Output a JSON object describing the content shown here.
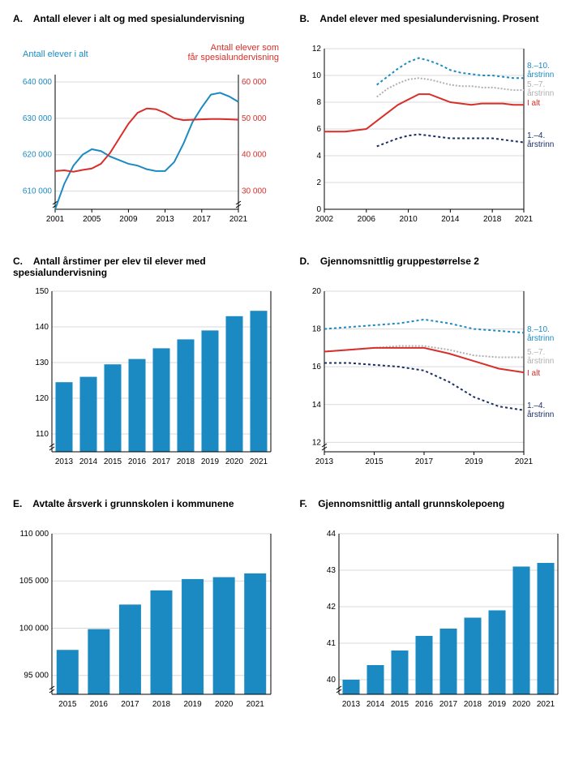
{
  "colors": {
    "blue": "#1c8ac2",
    "red": "#d72f2a",
    "navy": "#1a2f66",
    "grey": "#b0b0b0",
    "bar": "#1c8ac2",
    "axis": "#000000",
    "gridline": "#d9d9d9",
    "text": "#000000"
  },
  "panelA": {
    "letter": "A.",
    "title": "Antall elever i alt og med spesialundervisning",
    "left_label": "Antall elever i alt",
    "right_label": "Antall elever som får spesialundervisning",
    "x_ticks": [
      2001,
      2005,
      2009,
      2013,
      2017,
      2021
    ],
    "y_left_ticks": [
      610000,
      620000,
      630000,
      640000
    ],
    "y_right_ticks": [
      30000,
      40000,
      50000,
      60000
    ],
    "left_ylim": [
      605000,
      642000
    ],
    "right_ylim": [
      25000,
      62000
    ],
    "series_blue": {
      "color": "#1c8ac2",
      "x": [
        2001,
        2002,
        2003,
        2004,
        2005,
        2006,
        2007,
        2008,
        2009,
        2010,
        2011,
        2012,
        2013,
        2014,
        2015,
        2016,
        2017,
        2018,
        2019,
        2020,
        2021
      ],
      "y": [
        605000,
        612000,
        617000,
        620000,
        621500,
        621000,
        619500,
        618500,
        617500,
        617000,
        616000,
        615500,
        615500,
        618000,
        623000,
        629000,
        633000,
        636500,
        637000,
        636000,
        634500
      ]
    },
    "series_red": {
      "color": "#d72f2a",
      "x": [
        2001,
        2002,
        2003,
        2004,
        2005,
        2006,
        2007,
        2008,
        2009,
        2010,
        2011,
        2012,
        2013,
        2014,
        2015,
        2016,
        2017,
        2018,
        2019,
        2020,
        2021
      ],
      "y": [
        35500,
        35700,
        35300,
        35800,
        36200,
        37500,
        40500,
        44500,
        48500,
        51500,
        52700,
        52500,
        51500,
        50000,
        49500,
        49600,
        49700,
        49800,
        49800,
        49700,
        49600
      ]
    }
  },
  "panelB": {
    "letter": "B.",
    "title": "Andel elever med spesialundervisning. Prosent",
    "x_ticks": [
      2002,
      2006,
      2010,
      2014,
      2018,
      2021
    ],
    "y_ticks": [
      0,
      2,
      4,
      6,
      8,
      10,
      12
    ],
    "ylim": [
      0,
      12
    ],
    "labels": {
      "810": "8.–10. årstrinn",
      "57": "5.–7. årstrinn",
      "ialt": "I alt",
      "14": "1.–4. årstrinn"
    },
    "series": [
      {
        "name": "8-10",
        "color": "#1c8ac2",
        "dash": "3,3",
        "x": [
          2007,
          2008,
          2009,
          2010,
          2011,
          2012,
          2013,
          2014,
          2015,
          2016,
          2017,
          2018,
          2019,
          2020,
          2021
        ],
        "y": [
          9.3,
          9.9,
          10.5,
          11.0,
          11.3,
          11.1,
          10.8,
          10.4,
          10.2,
          10.1,
          10.0,
          10.0,
          9.9,
          9.8,
          9.8
        ]
      },
      {
        "name": "5-7",
        "color": "#b0b0b0",
        "dash": "2,2",
        "x": [
          2007,
          2008,
          2009,
          2010,
          2011,
          2012,
          2013,
          2014,
          2015,
          2016,
          2017,
          2018,
          2019,
          2020,
          2021
        ],
        "y": [
          8.4,
          9.0,
          9.4,
          9.7,
          9.8,
          9.7,
          9.5,
          9.3,
          9.2,
          9.2,
          9.1,
          9.1,
          9.0,
          8.9,
          8.9
        ]
      },
      {
        "name": "ialt",
        "color": "#d72f2a",
        "dash": "0",
        "x": [
          2002,
          2003,
          2004,
          2005,
          2006,
          2007,
          2008,
          2009,
          2010,
          2011,
          2012,
          2013,
          2014,
          2015,
          2016,
          2017,
          2018,
          2019,
          2020,
          2021
        ],
        "y": [
          5.8,
          5.8,
          5.8,
          5.9,
          6.0,
          6.6,
          7.2,
          7.8,
          8.2,
          8.6,
          8.6,
          8.3,
          8.0,
          7.9,
          7.8,
          7.9,
          7.9,
          7.9,
          7.8,
          7.8
        ]
      },
      {
        "name": "1-4",
        "color": "#1a2f66",
        "dash": "3,3",
        "x": [
          2007,
          2008,
          2009,
          2010,
          2011,
          2012,
          2013,
          2014,
          2015,
          2016,
          2017,
          2018,
          2019,
          2020,
          2021
        ],
        "y": [
          4.7,
          5.0,
          5.3,
          5.5,
          5.6,
          5.5,
          5.4,
          5.3,
          5.3,
          5.3,
          5.3,
          5.3,
          5.2,
          5.1,
          5.0
        ]
      }
    ]
  },
  "panelC": {
    "letter": "C.",
    "title": "Antall årstimer per elev til elever med spesialundervisning",
    "x_ticks": [
      2013,
      2014,
      2015,
      2016,
      2017,
      2018,
      2019,
      2020,
      2021
    ],
    "y_ticks": [
      110,
      120,
      130,
      140,
      150
    ],
    "ylim": [
      105,
      150
    ],
    "bars": {
      "x": [
        2013,
        2014,
        2015,
        2016,
        2017,
        2018,
        2019,
        2020,
        2021
      ],
      "y": [
        124.5,
        126,
        129.5,
        131,
        134,
        136.5,
        139,
        143,
        144.5
      ],
      "color": "#1c8ac2"
    }
  },
  "panelD": {
    "letter": "D.",
    "title": "Gjennomsnittlig gruppestørrelse 2",
    "x_ticks": [
      2013,
      2015,
      2017,
      2019,
      2021
    ],
    "y_ticks": [
      12,
      14,
      16,
      18,
      20
    ],
    "ylim": [
      11.5,
      20
    ],
    "labels": {
      "810": "8.–10. årstrinn",
      "57": "5.–7. årstrinn",
      "ialt": "I alt",
      "14": "1.–4. årstrinn"
    },
    "series": [
      {
        "name": "8-10",
        "color": "#1c8ac2",
        "dash": "3,3",
        "x": [
          2013,
          2014,
          2015,
          2016,
          2017,
          2018,
          2019,
          2020,
          2021
        ],
        "y": [
          18.0,
          18.1,
          18.2,
          18.3,
          18.5,
          18.3,
          18.0,
          17.9,
          17.8
        ]
      },
      {
        "name": "5-7",
        "color": "#b0b0b0",
        "dash": "2,2",
        "x": [
          2013,
          2014,
          2015,
          2016,
          2017,
          2018,
          2019,
          2020,
          2021
        ],
        "y": [
          16.8,
          16.9,
          17.0,
          17.1,
          17.1,
          16.9,
          16.6,
          16.5,
          16.5
        ]
      },
      {
        "name": "ialt",
        "color": "#d72f2a",
        "dash": "0",
        "x": [
          2013,
          2014,
          2015,
          2016,
          2017,
          2018,
          2019,
          2020,
          2021
        ],
        "y": [
          16.8,
          16.9,
          17.0,
          17.0,
          17.0,
          16.7,
          16.3,
          15.9,
          15.7
        ]
      },
      {
        "name": "1-4",
        "color": "#1a2f66",
        "dash": "3,3",
        "x": [
          2013,
          2014,
          2015,
          2016,
          2017,
          2018,
          2019,
          2020,
          2021
        ],
        "y": [
          16.2,
          16.2,
          16.1,
          16.0,
          15.8,
          15.2,
          14.4,
          13.9,
          13.7
        ]
      }
    ]
  },
  "panelE": {
    "letter": "E.",
    "title": "Avtalte årsverk i grunnskolen i kommunene",
    "x_ticks": [
      2015,
      2016,
      2017,
      2018,
      2019,
      2020,
      2021
    ],
    "y_ticks": [
      95000,
      100000,
      105000,
      110000
    ],
    "ylim": [
      93000,
      110000
    ],
    "bars": {
      "x": [
        2015,
        2016,
        2017,
        2018,
        2019,
        2020,
        2021
      ],
      "y": [
        97700,
        99900,
        102500,
        104000,
        105200,
        105400,
        105800
      ],
      "color": "#1c8ac2"
    }
  },
  "panelF": {
    "letter": "F.",
    "title": "Gjennomsnittlig antall grunnskolepoeng",
    "x_ticks": [
      2013,
      2014,
      2015,
      2016,
      2017,
      2018,
      2019,
      2020,
      2021
    ],
    "y_ticks": [
      40,
      41,
      42,
      43,
      44
    ],
    "ylim": [
      39.6,
      44
    ],
    "bars": {
      "x": [
        2013,
        2014,
        2015,
        2016,
        2017,
        2018,
        2019,
        2020,
        2021
      ],
      "y": [
        40.0,
        40.4,
        40.8,
        41.2,
        41.4,
        41.7,
        41.9,
        43.1,
        43.2
      ],
      "color": "#1c8ac2"
    }
  }
}
